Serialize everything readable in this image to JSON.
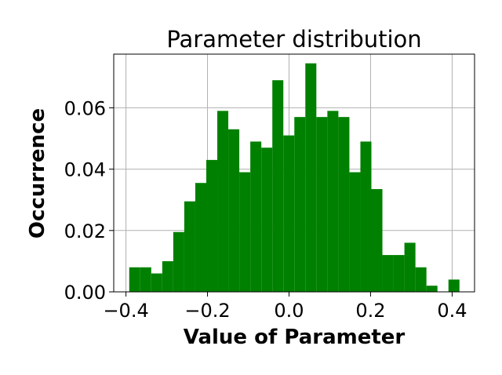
{
  "chart_data": {
    "type": "bar",
    "title": "Parameter distribution",
    "xlabel": "Value of Parameter",
    "ylabel": "Occurrence",
    "xlim": [
      -0.43,
      0.455
    ],
    "ylim": [
      0,
      0.0775
    ],
    "xticks": [
      {
        "value": -0.4,
        "label": "−0.4"
      },
      {
        "value": -0.2,
        "label": "−0.2"
      },
      {
        "value": 0.0,
        "label": "0.0"
      },
      {
        "value": 0.2,
        "label": "0.2"
      },
      {
        "value": 0.4,
        "label": "0.4"
      }
    ],
    "yticks": [
      {
        "value": 0.0,
        "label": "0.00"
      },
      {
        "value": 0.02,
        "label": "0.02"
      },
      {
        "value": 0.04,
        "label": "0.04"
      },
      {
        "value": 0.06,
        "label": "0.06"
      }
    ],
    "grid": true,
    "bar_color": "#008000",
    "bins": [
      {
        "x0": -0.392,
        "x1": -0.365,
        "value": 0.008
      },
      {
        "x0": -0.365,
        "x1": -0.338,
        "value": 0.008
      },
      {
        "x0": -0.338,
        "x1": -0.311,
        "value": 0.006
      },
      {
        "x0": -0.311,
        "x1": -0.284,
        "value": 0.01
      },
      {
        "x0": -0.284,
        "x1": -0.257,
        "value": 0.0195
      },
      {
        "x0": -0.257,
        "x1": -0.23,
        "value": 0.0295
      },
      {
        "x0": -0.23,
        "x1": -0.203,
        "value": 0.0355
      },
      {
        "x0": -0.203,
        "x1": -0.176,
        "value": 0.043
      },
      {
        "x0": -0.176,
        "x1": -0.149,
        "value": 0.059
      },
      {
        "x0": -0.149,
        "x1": -0.122,
        "value": 0.053
      },
      {
        "x0": -0.122,
        "x1": -0.095,
        "value": 0.039
      },
      {
        "x0": -0.095,
        "x1": -0.068,
        "value": 0.049
      },
      {
        "x0": -0.068,
        "x1": -0.041,
        "value": 0.047
      },
      {
        "x0": -0.041,
        "x1": -0.014,
        "value": 0.069
      },
      {
        "x0": -0.014,
        "x1": 0.013,
        "value": 0.051
      },
      {
        "x0": 0.013,
        "x1": 0.04,
        "value": 0.057
      },
      {
        "x0": 0.04,
        "x1": 0.067,
        "value": 0.0745
      },
      {
        "x0": 0.067,
        "x1": 0.094,
        "value": 0.057
      },
      {
        "x0": 0.094,
        "x1": 0.121,
        "value": 0.059
      },
      {
        "x0": 0.121,
        "x1": 0.148,
        "value": 0.057
      },
      {
        "x0": 0.148,
        "x1": 0.175,
        "value": 0.039
      },
      {
        "x0": 0.175,
        "x1": 0.202,
        "value": 0.049
      },
      {
        "x0": 0.202,
        "x1": 0.229,
        "value": 0.0335
      },
      {
        "x0": 0.229,
        "x1": 0.256,
        "value": 0.012
      },
      {
        "x0": 0.256,
        "x1": 0.283,
        "value": 0.012
      },
      {
        "x0": 0.283,
        "x1": 0.31,
        "value": 0.016
      },
      {
        "x0": 0.31,
        "x1": 0.337,
        "value": 0.008
      },
      {
        "x0": 0.337,
        "x1": 0.364,
        "value": 0.002
      },
      {
        "x0": 0.364,
        "x1": 0.391,
        "value": 0.0
      },
      {
        "x0": 0.391,
        "x1": 0.418,
        "value": 0.004
      }
    ]
  }
}
